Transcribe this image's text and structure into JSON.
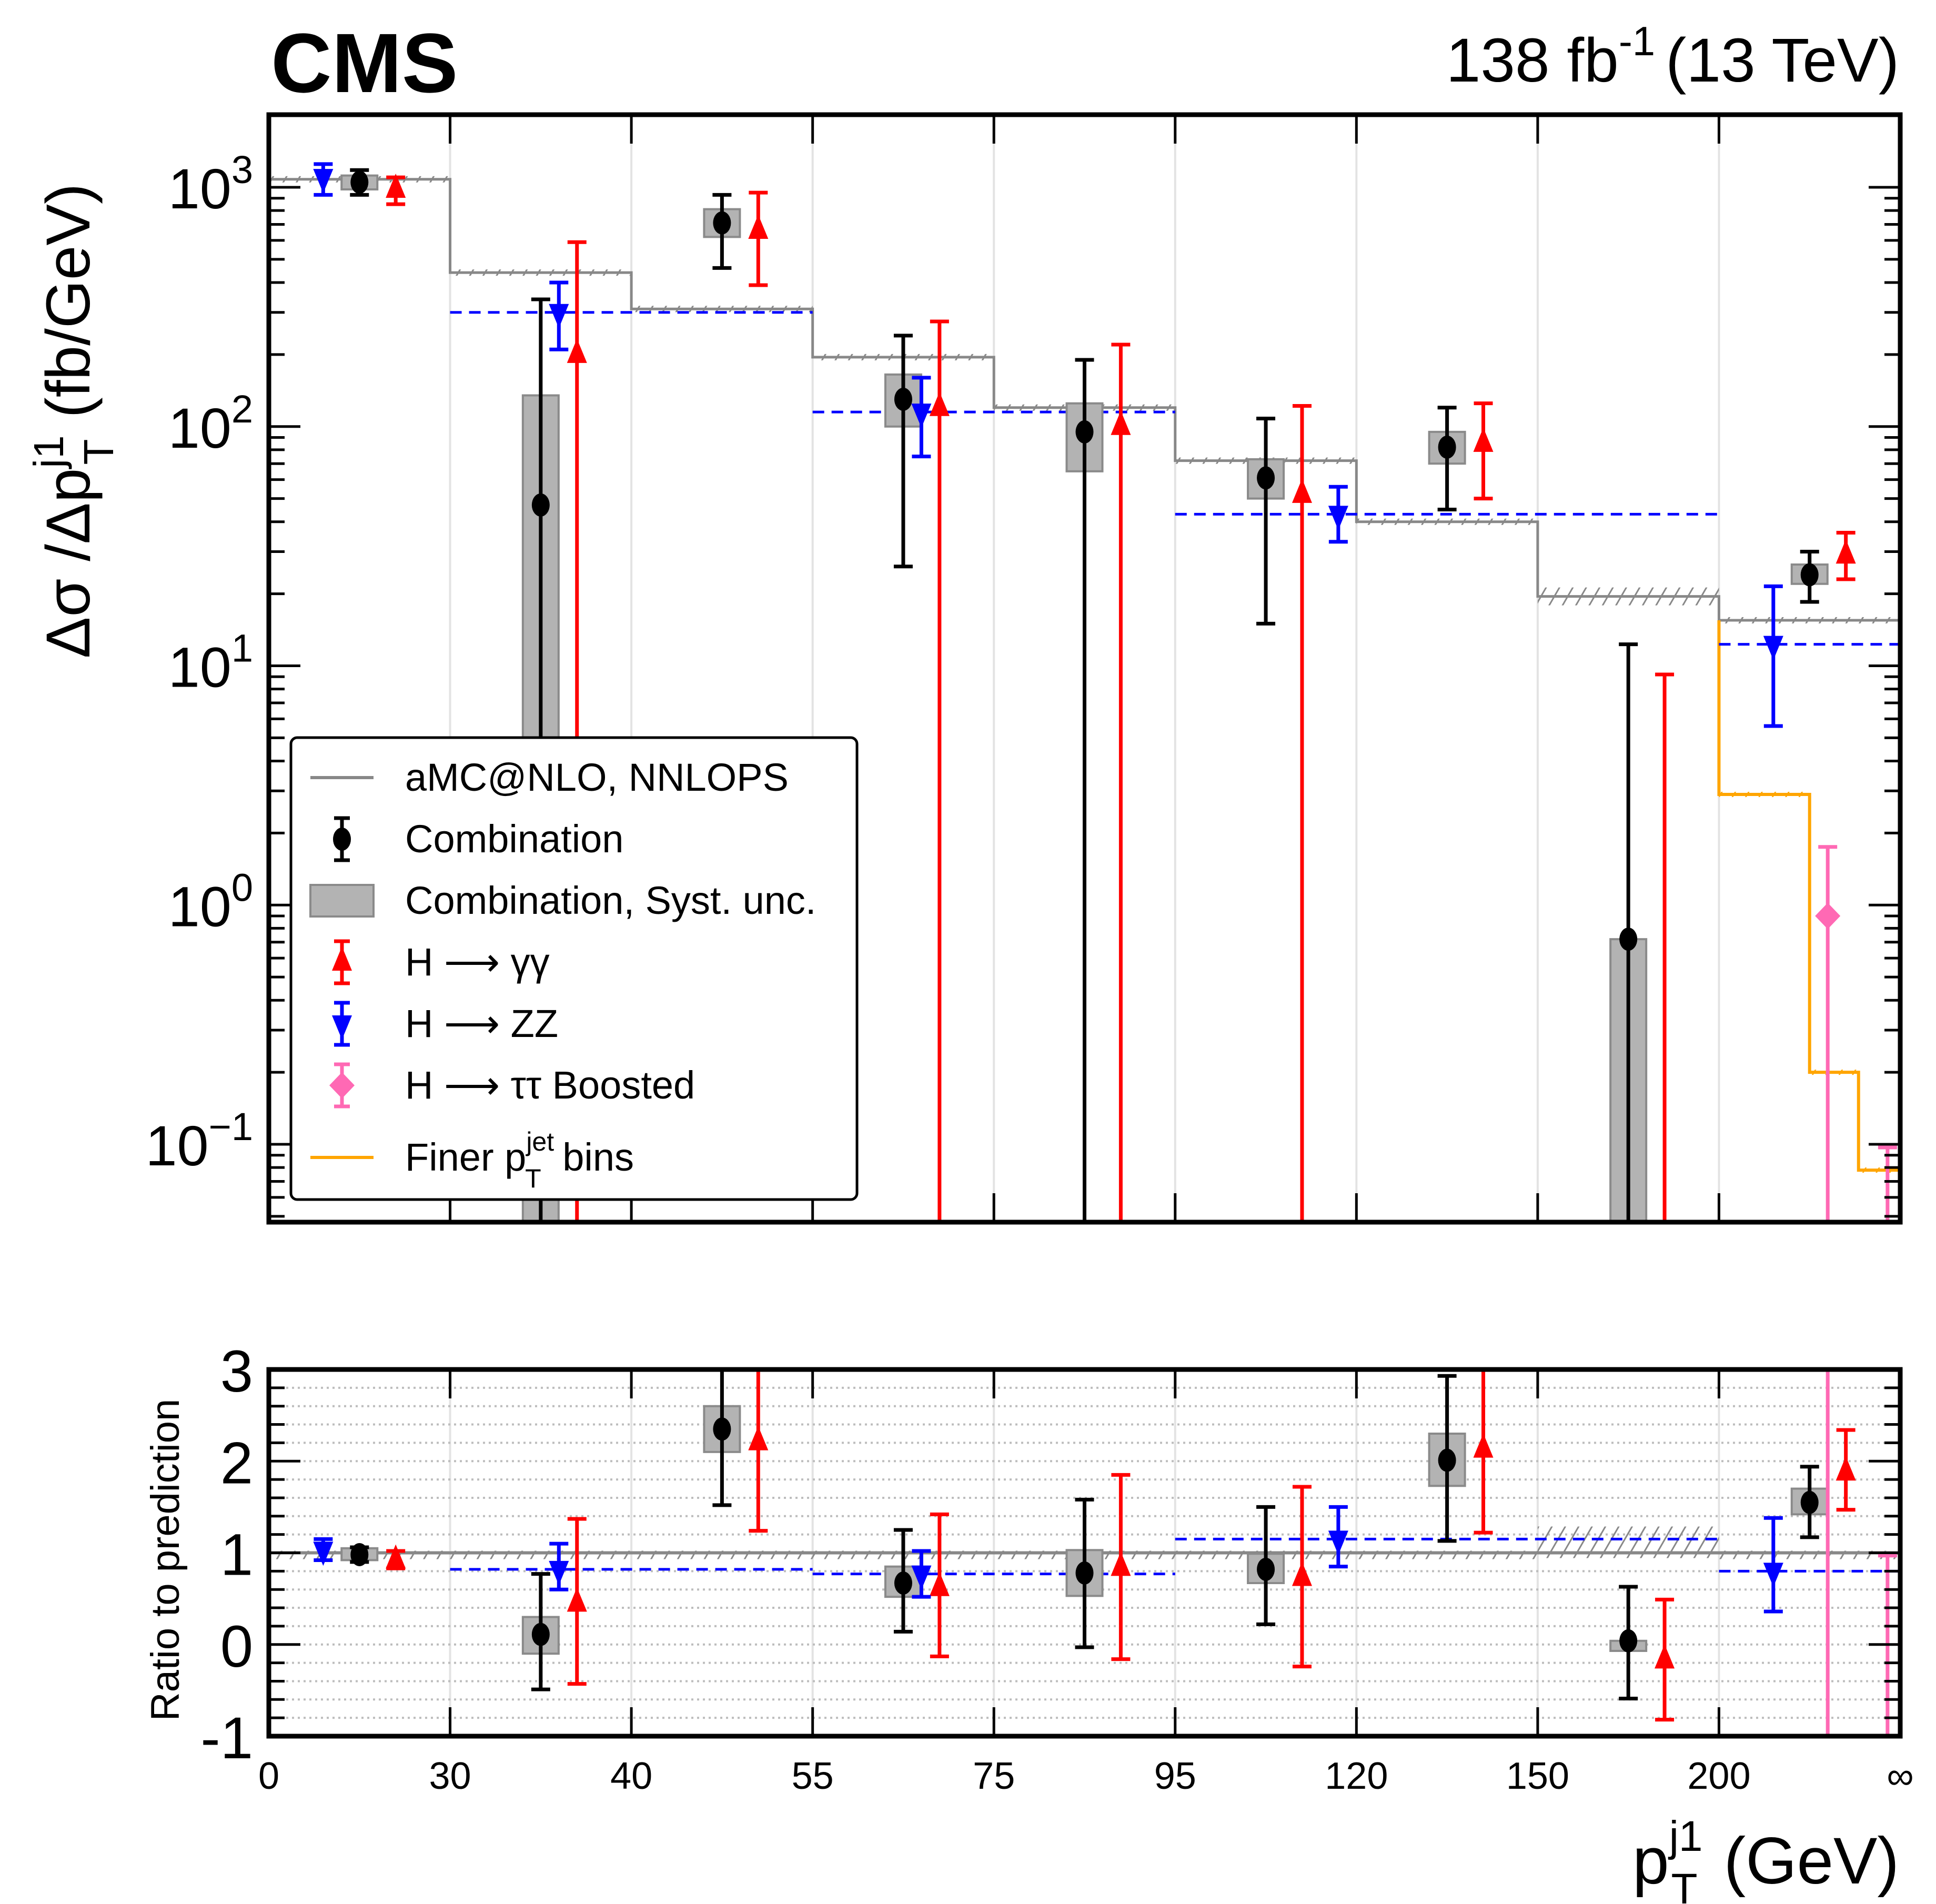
{
  "header": {
    "experiment": "CMS",
    "luminosity": "138 fb",
    "lumi_exponent": "-1",
    "energy": "(13 TeV)"
  },
  "chart_data": [
    {
      "type": "scatter",
      "panel": "main",
      "ylabel_parts": {
        "main": "Δσ /Δp",
        "sup": "j1",
        "sub": "T",
        "unit": "(fb/GeV)"
      },
      "yscale": "log",
      "ylim": [
        0.047,
        2000
      ],
      "ytick_labels": [
        {
          "value": 1000,
          "base": "10",
          "exp": "3"
        },
        {
          "value": 100,
          "base": "10",
          "exp": "2"
        },
        {
          "value": 10,
          "base": "10",
          "exp": "1"
        },
        {
          "value": 1,
          "base": "10",
          "exp": "0"
        },
        {
          "value": 0.1,
          "base": "10",
          "exp": "−1"
        }
      ],
      "bins": [
        "0-30",
        "30-40",
        "40-55",
        "55-75",
        "75-95",
        "95-120",
        "120-150",
        "150-200",
        "200-inf"
      ],
      "prediction": {
        "name": "aMC@NLO, NNLOPS",
        "color": "#888888",
        "values": [
          1080,
          440,
          310,
          195,
          120,
          72,
          40,
          19.5,
          15.5
        ]
      },
      "finer_bins": {
        "name": "Finer p_T^jet bins",
        "color": "#FFA500",
        "segments": [
          {
            "from_bin": 8.0,
            "to_bin": 8.0,
            "value": 15.5
          },
          {
            "from_bin": 8.0,
            "to_bin": 8.5,
            "value": 2.9
          },
          {
            "from_bin": 8.5,
            "to_bin": 8.77,
            "value": 0.2
          },
          {
            "from_bin": 8.77,
            "to_bin": 9.0,
            "value": 0.078
          }
        ]
      },
      "zz_fit_lines": {
        "color": "#0000FF",
        "segments": [
          {
            "from_bin": 1,
            "to_bin": 3,
            "value": 300
          },
          {
            "from_bin": 3,
            "to_bin": 5,
            "value": 115
          },
          {
            "from_bin": 5,
            "to_bin": 8,
            "value": 43
          },
          {
            "from_bin": 8,
            "to_bin": 9,
            "value": 12.3
          }
        ]
      },
      "series": [
        {
          "name": "Combination",
          "color": "#000000",
          "marker": "circle",
          "points": [
            {
              "bin": 0,
              "offset": 0.5,
              "y": 1050,
              "lo": 930,
              "hi": 1180,
              "syst_lo": 980,
              "syst_hi": 1120
            },
            {
              "bin": 1,
              "offset": 0.5,
              "y": 47,
              "lo": 0.01,
              "hi": 340,
              "syst_lo": 0.01,
              "syst_hi": 135
            },
            {
              "bin": 2,
              "offset": 0.5,
              "y": 710,
              "lo": 460,
              "hi": 930,
              "syst_lo": 620,
              "syst_hi": 810
            },
            {
              "bin": 3,
              "offset": 0.5,
              "y": 130,
              "lo": 26,
              "hi": 240,
              "syst_lo": 100,
              "syst_hi": 165
            },
            {
              "bin": 4,
              "offset": 0.5,
              "y": 95,
              "lo": 0.01,
              "hi": 190,
              "syst_lo": 65,
              "syst_hi": 125
            },
            {
              "bin": 5,
              "offset": 0.5,
              "y": 61,
              "lo": 15,
              "hi": 108,
              "syst_lo": 50,
              "syst_hi": 73
            },
            {
              "bin": 6,
              "offset": 0.5,
              "y": 82,
              "lo": 45,
              "hi": 120,
              "syst_lo": 70,
              "syst_hi": 95
            },
            {
              "bin": 7,
              "offset": 0.5,
              "y": 0.72,
              "lo": 0.01,
              "hi": 12.3,
              "syst_lo": 0.01,
              "syst_hi": 0.72
            },
            {
              "bin": 8,
              "offset": 0.5,
              "y": 24,
              "lo": 18.5,
              "hi": 30,
              "syst_lo": 22,
              "syst_hi": 26.5
            }
          ]
        },
        {
          "name": "H → γγ",
          "color": "#FF0000",
          "marker": "triangle-up",
          "points": [
            {
              "bin": 0,
              "offset": 0.7,
              "y": 980,
              "lo": 850,
              "hi": 1100
            },
            {
              "bin": 1,
              "offset": 0.7,
              "y": 200,
              "lo": 0.01,
              "hi": 590
            },
            {
              "bin": 2,
              "offset": 0.7,
              "y": 660,
              "lo": 390,
              "hi": 950
            },
            {
              "bin": 3,
              "offset": 0.7,
              "y": 120,
              "lo": 0.01,
              "hi": 275
            },
            {
              "bin": 4,
              "offset": 0.7,
              "y": 100,
              "lo": 0.01,
              "hi": 220
            },
            {
              "bin": 5,
              "offset": 0.7,
              "y": 52,
              "lo": 0.01,
              "hi": 122
            },
            {
              "bin": 6,
              "offset": 0.7,
              "y": 85,
              "lo": 50,
              "hi": 125
            },
            {
              "bin": 7,
              "offset": 0.7,
              "y": 0.001,
              "lo": 0.01,
              "hi": 9.2
            },
            {
              "bin": 8,
              "offset": 0.7,
              "y": 29,
              "lo": 23,
              "hi": 36
            }
          ]
        },
        {
          "name": "H → ZZ",
          "color": "#0000FF",
          "marker": "triangle-down",
          "points": [
            {
              "bin": 0,
              "offset": 0.3,
              "y": 1100,
              "lo": 930,
              "hi": 1250
            },
            {
              "bin": 1,
              "offset": 0.6,
              "y": 300,
              "lo": 210,
              "hi": 400
            },
            {
              "bin": 3,
              "offset": 0.6,
              "y": 115,
              "lo": 75,
              "hi": 160
            },
            {
              "bin": 5,
              "offset": 0.9,
              "y": 43,
              "lo": 33,
              "hi": 56
            },
            {
              "bin": 8,
              "offset": 0.3,
              "y": 12.3,
              "lo": 5.6,
              "hi": 21.5
            }
          ]
        },
        {
          "name": "H → ττ Boosted",
          "color": "#FF69B4",
          "marker": "diamond",
          "points": [
            {
              "bin": 8,
              "offset": 0.6,
              "y": 0.9,
              "lo": 0.01,
              "hi": 1.75
            },
            {
              "bin": 8,
              "offset": 0.93,
              "y": 0.001,
              "lo": 0.01,
              "hi": 0.097
            }
          ]
        }
      ],
      "legend": {
        "placement": "center-left",
        "entries": [
          {
            "label": "aMC@NLO, NNLOPS",
            "kind": "line",
            "color": "#888888"
          },
          {
            "label": "Combination",
            "kind": "point",
            "color": "#000000",
            "marker": "circle"
          },
          {
            "label": "Combination, Syst. unc.",
            "kind": "box",
            "color": "#B3B3B3"
          },
          {
            "label": "H ⟶ γγ",
            "kind": "point",
            "color": "#FF0000",
            "marker": "triangle-up"
          },
          {
            "label": "H ⟶  ZZ",
            "kind": "point",
            "color": "#0000FF",
            "marker": "triangle-down"
          },
          {
            "label": "H ⟶ ττ Boosted",
            "kind": "point",
            "color": "#FF69B4",
            "marker": "diamond"
          },
          {
            "label_main": "Finer p",
            "label_sup": "jet",
            "label_sub": "T",
            "label_tail": " bins",
            "kind": "line",
            "color": "#FFA500"
          }
        ]
      }
    },
    {
      "type": "scatter",
      "panel": "ratio",
      "ylabel": "Ratio to prediction",
      "ylim": [
        -1,
        3
      ],
      "ytick_labels": [
        "3",
        "2",
        "1",
        "0",
        "-1"
      ],
      "ytick_values": [
        3,
        2,
        1,
        0,
        -1
      ],
      "xlabel_parts": {
        "main": "p",
        "sup": "j1",
        "sub": "T",
        "unit": "(GeV)"
      },
      "xtick_labels": [
        "0",
        "30",
        "40",
        "55",
        "75",
        "95",
        "120",
        "150",
        "200",
        "∞"
      ],
      "reference": 1,
      "zz_fit_lines": [
        {
          "from_bin": 1,
          "to_bin": 3,
          "value": 0.82
        },
        {
          "from_bin": 3,
          "to_bin": 5,
          "value": 0.77
        },
        {
          "from_bin": 5,
          "to_bin": 8,
          "value": 1.15
        },
        {
          "from_bin": 8,
          "to_bin": 9,
          "value": 0.8
        }
      ],
      "series": [
        {
          "name": "Combination",
          "points": [
            {
              "bin": 0,
              "offset": 0.5,
              "y": 0.98,
              "lo": 0.9,
              "hi": 1.06,
              "syst_lo": 0.92,
              "syst_hi": 1.05
            },
            {
              "bin": 1,
              "offset": 0.5,
              "y": 0.11,
              "lo": -0.49,
              "hi": 0.77,
              "syst_lo": -0.1,
              "syst_hi": 0.3
            },
            {
              "bin": 2,
              "offset": 0.5,
              "y": 2.35,
              "lo": 1.52,
              "hi": 3.0,
              "syst_lo": 2.1,
              "syst_hi": 2.6
            },
            {
              "bin": 3,
              "offset": 0.5,
              "y": 0.67,
              "lo": 0.14,
              "hi": 1.25,
              "syst_lo": 0.52,
              "syst_hi": 0.85
            },
            {
              "bin": 4,
              "offset": 0.5,
              "y": 0.78,
              "lo": -0.03,
              "hi": 1.58,
              "syst_lo": 0.53,
              "syst_hi": 1.03
            },
            {
              "bin": 5,
              "offset": 0.5,
              "y": 0.82,
              "lo": 0.22,
              "hi": 1.5,
              "syst_lo": 0.67,
              "syst_hi": 0.99
            },
            {
              "bin": 6,
              "offset": 0.5,
              "y": 2.01,
              "lo": 1.13,
              "hi": 2.93,
              "syst_lo": 1.73,
              "syst_hi": 2.3
            },
            {
              "bin": 7,
              "offset": 0.5,
              "y": 0.04,
              "lo": -0.59,
              "hi": 0.63,
              "syst_lo": -0.07,
              "syst_hi": 0.04
            },
            {
              "bin": 8,
              "offset": 0.5,
              "y": 1.55,
              "lo": 1.17,
              "hi": 1.94,
              "syst_lo": 1.42,
              "syst_hi": 1.7
            }
          ]
        },
        {
          "name": "H → γγ",
          "points": [
            {
              "bin": 0,
              "offset": 0.7,
              "y": 0.92,
              "lo": 0.83,
              "hi": 1.02
            },
            {
              "bin": 1,
              "offset": 0.7,
              "y": 0.45,
              "lo": -0.43,
              "hi": 1.37
            },
            {
              "bin": 2,
              "offset": 0.7,
              "y": 2.21,
              "lo": 1.24,
              "hi": 3.1
            },
            {
              "bin": 3,
              "offset": 0.7,
              "y": 0.62,
              "lo": -0.13,
              "hi": 1.42
            },
            {
              "bin": 4,
              "offset": 0.7,
              "y": 0.84,
              "lo": -0.16,
              "hi": 1.85
            },
            {
              "bin": 5,
              "offset": 0.7,
              "y": 0.73,
              "lo": -0.24,
              "hi": 1.72
            },
            {
              "bin": 6,
              "offset": 0.7,
              "y": 2.13,
              "lo": 1.22,
              "hi": 3.1
            },
            {
              "bin": 7,
              "offset": 0.7,
              "y": -0.17,
              "lo": -0.82,
              "hi": 0.49
            },
            {
              "bin": 8,
              "offset": 0.7,
              "y": 1.88,
              "lo": 1.47,
              "hi": 2.34
            }
          ]
        },
        {
          "name": "H → ZZ",
          "points": [
            {
              "bin": 0,
              "offset": 0.3,
              "y": 1.03,
              "lo": 0.92,
              "hi": 1.15
            },
            {
              "bin": 1,
              "offset": 0.6,
              "y": 0.82,
              "lo": 0.6,
              "hi": 1.1
            },
            {
              "bin": 3,
              "offset": 0.6,
              "y": 0.77,
              "lo": 0.52,
              "hi": 1.02
            },
            {
              "bin": 5,
              "offset": 0.9,
              "y": 1.15,
              "lo": 0.85,
              "hi": 1.5
            },
            {
              "bin": 8,
              "offset": 0.3,
              "y": 0.8,
              "lo": 0.36,
              "hi": 1.38
            }
          ]
        },
        {
          "name": "H → ττ Boosted",
          "points": [
            {
              "bin": 8,
              "offset": 0.6,
              "y": 6.0,
              "lo": -1.5,
              "hi": 6.0
            },
            {
              "bin": 8,
              "offset": 0.93,
              "y": -1.5,
              "lo": -1.5,
              "hi": 0.97
            }
          ]
        }
      ]
    }
  ]
}
